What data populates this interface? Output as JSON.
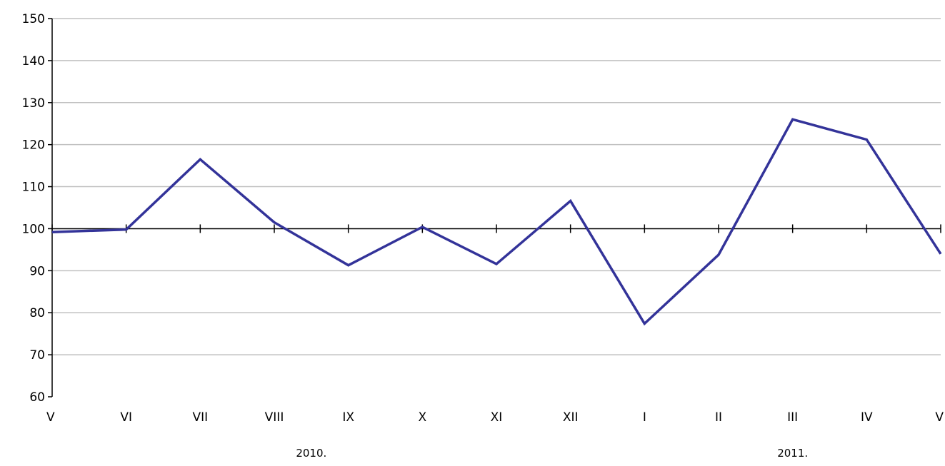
{
  "chart_data": {
    "type": "line",
    "categories": [
      "V",
      "VI",
      "VII",
      "VIII",
      "IX",
      "X",
      "XI",
      "XII",
      "I",
      "II",
      "III",
      "IV",
      "V"
    ],
    "category_groups": [
      {
        "label": "2010.",
        "from": 0,
        "to": 7
      },
      {
        "label": "2011.",
        "from": 8,
        "to": 12
      }
    ],
    "series": [
      {
        "values": [
          99.2,
          99.8,
          116.5,
          101.5,
          91.3,
          100.4,
          91.6,
          106.6,
          77.4,
          93.8,
          126.0,
          121.2,
          94.0
        ]
      }
    ],
    "ylim": [
      60,
      150
    ],
    "yticks": [
      60,
      70,
      80,
      90,
      100,
      110,
      120,
      130,
      140,
      150
    ],
    "x_axis_crosses_at": 100,
    "grid": true,
    "title": "",
    "xlabel": "",
    "ylabel": "",
    "colors": {
      "line": "#333399",
      "grid": "#c0c0c0",
      "axis": "#000000"
    }
  }
}
